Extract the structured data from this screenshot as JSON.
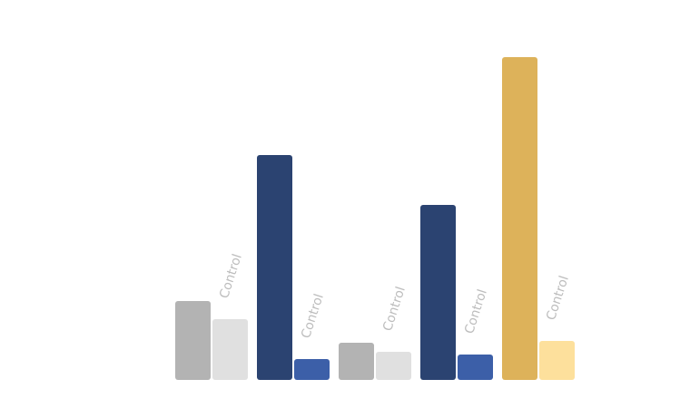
{
  "chart_data": {
    "type": "bar",
    "groups": [
      {
        "bars": [
          {
            "value": 87,
            "color": "#b3b3b3"
          },
          {
            "value": 67,
            "color": "#e0e0e0",
            "label": "Control"
          }
        ]
      },
      {
        "bars": [
          {
            "value": 248,
            "color": "#2b4371"
          },
          {
            "value": 23,
            "color": "#3c5fa8",
            "label": "Control"
          }
        ]
      },
      {
        "bars": [
          {
            "value": 41,
            "color": "#b3b3b3"
          },
          {
            "value": 31,
            "color": "#e0e0e0",
            "label": "Control"
          }
        ]
      },
      {
        "bars": [
          {
            "value": 193,
            "color": "#2b4371"
          },
          {
            "value": 28,
            "color": "#3c5fa8",
            "label": "Control"
          }
        ]
      },
      {
        "bars": [
          {
            "value": 356,
            "color": "#ddb25a"
          },
          {
            "value": 43,
            "color": "#fde09c",
            "label": "Control"
          }
        ]
      }
    ]
  }
}
